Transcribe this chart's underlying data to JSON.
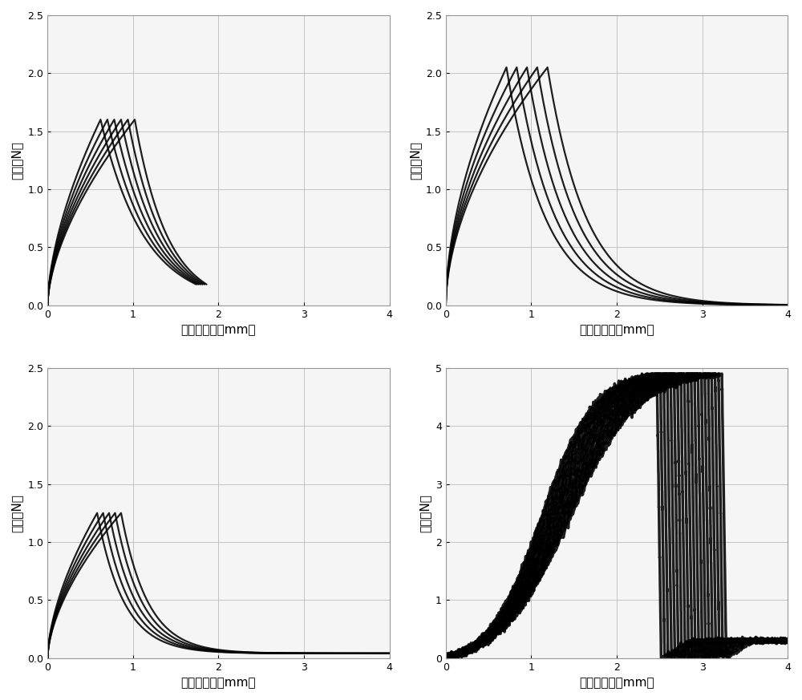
{
  "fig_bg": "#ffffff",
  "ax_bg": "#f5f5f5",
  "grid_color": "#bbbbbb",
  "line_color": "#000000",
  "subplots": [
    {
      "row": 0,
      "col": 0,
      "ylabel": "应力（N）",
      "xlabel": "拉伸伸长率（mm）",
      "ylim": [
        0,
        2.5
      ],
      "yticks": [
        0,
        0.5,
        1.0,
        1.5,
        2.0,
        2.5
      ],
      "xlim": [
        0,
        4
      ],
      "xticks": [
        0,
        1,
        2,
        3,
        4
      ],
      "peak_x": 0.82,
      "peak_y": 1.6,
      "n_curves": 6,
      "curve_type": "A",
      "x_spread": 0.08,
      "drop_end_x": 1.8,
      "drop_end_y": 0.18
    },
    {
      "row": 0,
      "col": 1,
      "ylabel": "应力（N）",
      "xlabel": "拉伸伸长率（mm）",
      "ylim": [
        0,
        2.5
      ],
      "yticks": [
        0,
        0.5,
        1.0,
        1.5,
        2.0,
        2.5
      ],
      "xlim": [
        0,
        4
      ],
      "xticks": [
        0,
        1,
        2,
        3,
        4
      ],
      "peak_x": 0.95,
      "peak_y": 2.05,
      "n_curves": 5,
      "curve_type": "B",
      "x_spread": 0.12,
      "drop_end_x": 4.0,
      "drop_end_y": 0.0
    },
    {
      "row": 1,
      "col": 0,
      "ylabel": "应力（N）",
      "xlabel": "拉伸伸长率（mm）",
      "ylim": [
        0,
        2.5
      ],
      "yticks": [
        0,
        0.5,
        1.0,
        1.5,
        2.0,
        2.5
      ],
      "xlim": [
        0,
        4
      ],
      "xticks": [
        0,
        1,
        2,
        3,
        4
      ],
      "peak_x": 0.72,
      "peak_y": 1.25,
      "n_curves": 5,
      "curve_type": "C",
      "x_spread": 0.07,
      "drop_end_x": 4.0,
      "drop_end_y": 0.04
    },
    {
      "row": 1,
      "col": 1,
      "ylabel": "应力（N）",
      "xlabel": "拉伸伸长率（mm）",
      "ylim": [
        0,
        5
      ],
      "yticks": [
        0,
        1,
        2,
        3,
        4,
        5
      ],
      "xlim": [
        0,
        4
      ],
      "xticks": [
        0,
        1,
        2,
        3,
        4
      ],
      "peak_x": 2.85,
      "peak_y": 4.9,
      "n_curves": 20,
      "curve_type": "D",
      "x_spread": 0.04,
      "drop_end_x": 4.0,
      "drop_end_y": 0.3
    }
  ]
}
